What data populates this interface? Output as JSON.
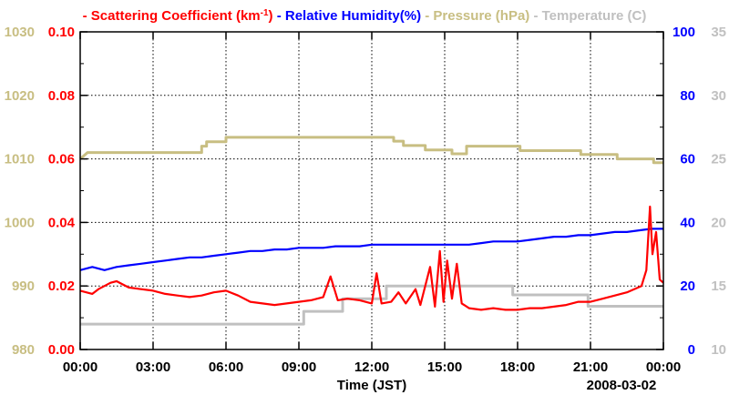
{
  "chart_data": {
    "type": "line",
    "title_segments": [
      {
        "name": "scattering",
        "text": "- Scattering Coefficient (km",
        "sup": "-1",
        "after": ")",
        "color": "#ff0000"
      },
      {
        "name": "humidity",
        "text": "- Relative Humidity(%)",
        "color": "#0000ff"
      },
      {
        "name": "pressure",
        "text": "- Pressure (hPa)",
        "color": "#c8be82"
      },
      {
        "name": "temperature",
        "text": "- Temperature (",
        "after": "C)",
        "color": "#c0c0c0"
      }
    ],
    "xlabel": "Time (JST)",
    "date_label": "2008-03-02",
    "x_ticks": [
      {
        "v": 0,
        "label": "00:00"
      },
      {
        "v": 3,
        "label": "03:00"
      },
      {
        "v": 6,
        "label": "06:00"
      },
      {
        "v": 9,
        "label": "09:00"
      },
      {
        "v": 12,
        "label": "12:00"
      },
      {
        "v": 15,
        "label": "15:00"
      },
      {
        "v": 18,
        "label": "18:00"
      },
      {
        "v": 21,
        "label": "21:00"
      },
      {
        "v": 24,
        "label": "00:00"
      }
    ],
    "xlim": [
      0,
      24
    ],
    "axes": {
      "pressure": {
        "color": "#c8be82",
        "ylim": [
          980,
          1030
        ],
        "ticks": [
          "980",
          "990",
          "1000",
          "1010",
          "1020",
          "1030"
        ]
      },
      "scattering": {
        "color": "#ff0000",
        "ylim": [
          0,
          0.1
        ],
        "ticks": [
          "0.00",
          "0.02",
          "0.04",
          "0.06",
          "0.08",
          "0.10"
        ]
      },
      "humidity": {
        "color": "#0000ff",
        "ylim": [
          0,
          100
        ],
        "ticks": [
          "0",
          "20",
          "40",
          "60",
          "80",
          "100"
        ]
      },
      "temperature": {
        "color": "#c0c0c0",
        "ylim": [
          10,
          35
        ],
        "ticks": [
          "10",
          "15",
          "20",
          "25",
          "30",
          "35"
        ]
      }
    },
    "grid": true,
    "series": [
      {
        "name": "Pressure (hPa)",
        "color": "#c8be82",
        "axis": "pressure",
        "step": true,
        "points": [
          [
            0,
            1010
          ],
          [
            0.3,
            1011
          ],
          [
            5.0,
            1011
          ],
          [
            5.0,
            1012
          ],
          [
            5.2,
            1012
          ],
          [
            5.2,
            1012.7
          ],
          [
            6.0,
            1012.7
          ],
          [
            6.0,
            1013.4
          ],
          [
            12.9,
            1013.4
          ],
          [
            12.9,
            1012.8
          ],
          [
            13.3,
            1012.8
          ],
          [
            13.3,
            1012.1
          ],
          [
            14.2,
            1012.1
          ],
          [
            14.2,
            1011.4
          ],
          [
            15.3,
            1011.4
          ],
          [
            15.3,
            1010.8
          ],
          [
            15.9,
            1010.8
          ],
          [
            15.9,
            1012
          ],
          [
            18.1,
            1012
          ],
          [
            18.1,
            1011.3
          ],
          [
            20.6,
            1011.3
          ],
          [
            20.6,
            1010.7
          ],
          [
            22.1,
            1010.7
          ],
          [
            22.1,
            1010
          ],
          [
            23.6,
            1010
          ],
          [
            23.6,
            1009.4
          ],
          [
            24,
            1009.4
          ]
        ]
      },
      {
        "name": "Temperature (C)",
        "color": "#c0c0c0",
        "axis": "temperature",
        "step": true,
        "points": [
          [
            0,
            12
          ],
          [
            9.2,
            12
          ],
          [
            9.2,
            13
          ],
          [
            10.8,
            13
          ],
          [
            10.8,
            14
          ],
          [
            12.6,
            14
          ],
          [
            12.6,
            15
          ],
          [
            17.8,
            15
          ],
          [
            17.8,
            14.3
          ],
          [
            20.9,
            14.3
          ],
          [
            20.9,
            13.4
          ],
          [
            24,
            13.4
          ]
        ]
      },
      {
        "name": "Relative Humidity(%)",
        "color": "#0000ff",
        "axis": "humidity",
        "points": [
          [
            0,
            25
          ],
          [
            0.5,
            26
          ],
          [
            1,
            25
          ],
          [
            1.5,
            26
          ],
          [
            2,
            26.5
          ],
          [
            2.5,
            27
          ],
          [
            3,
            27.5
          ],
          [
            3.5,
            28
          ],
          [
            4,
            28.5
          ],
          [
            4.5,
            29
          ],
          [
            5,
            29
          ],
          [
            5.5,
            29.5
          ],
          [
            6,
            30
          ],
          [
            6.5,
            30.5
          ],
          [
            7,
            31
          ],
          [
            7.5,
            31
          ],
          [
            8,
            31.5
          ],
          [
            8.5,
            31.5
          ],
          [
            9,
            32
          ],
          [
            9.5,
            32
          ],
          [
            10,
            32
          ],
          [
            10.5,
            32.5
          ],
          [
            11,
            32.5
          ],
          [
            11.5,
            32.5
          ],
          [
            12,
            33
          ],
          [
            12.5,
            33
          ],
          [
            13,
            33
          ],
          [
            13.5,
            33
          ],
          [
            14,
            33
          ],
          [
            14.5,
            33
          ],
          [
            15,
            33
          ],
          [
            15.5,
            33
          ],
          [
            16,
            33
          ],
          [
            16.5,
            33.5
          ],
          [
            17,
            34
          ],
          [
            17.5,
            34
          ],
          [
            18,
            34
          ],
          [
            18.5,
            34.5
          ],
          [
            19,
            35
          ],
          [
            19.5,
            35.5
          ],
          [
            20,
            35.5
          ],
          [
            20.5,
            36
          ],
          [
            21,
            36
          ],
          [
            21.5,
            36.5
          ],
          [
            22,
            37
          ],
          [
            22.5,
            37
          ],
          [
            23,
            37.5
          ],
          [
            23.5,
            38
          ],
          [
            24,
            38
          ]
        ]
      },
      {
        "name": "Scattering Coefficient (km-1)",
        "color": "#ff0000",
        "axis": "scattering",
        "points": [
          [
            0,
            0.0185
          ],
          [
            0.25,
            0.018
          ],
          [
            0.5,
            0.0175
          ],
          [
            0.75,
            0.019
          ],
          [
            1,
            0.02
          ],
          [
            1.25,
            0.021
          ],
          [
            1.5,
            0.0215
          ],
          [
            1.75,
            0.0205
          ],
          [
            2,
            0.0195
          ],
          [
            2.5,
            0.019
          ],
          [
            3,
            0.0185
          ],
          [
            3.5,
            0.0175
          ],
          [
            4,
            0.017
          ],
          [
            4.5,
            0.0165
          ],
          [
            5,
            0.017
          ],
          [
            5.5,
            0.018
          ],
          [
            6,
            0.0185
          ],
          [
            6.5,
            0.017
          ],
          [
            7,
            0.015
          ],
          [
            7.5,
            0.0145
          ],
          [
            8,
            0.014
          ],
          [
            8.5,
            0.0145
          ],
          [
            9,
            0.015
          ],
          [
            9.5,
            0.0155
          ],
          [
            10,
            0.0165
          ],
          [
            10.3,
            0.023
          ],
          [
            10.6,
            0.0155
          ],
          [
            11,
            0.016
          ],
          [
            11.5,
            0.0155
          ],
          [
            12,
            0.0145
          ],
          [
            12.2,
            0.024
          ],
          [
            12.4,
            0.0145
          ],
          [
            12.8,
            0.015
          ],
          [
            13.1,
            0.018
          ],
          [
            13.4,
            0.0145
          ],
          [
            13.8,
            0.019
          ],
          [
            14,
            0.014
          ],
          [
            14.4,
            0.026
          ],
          [
            14.6,
            0.0135
          ],
          [
            14.8,
            0.031
          ],
          [
            14.95,
            0.015
          ],
          [
            15.1,
            0.028
          ],
          [
            15.3,
            0.016
          ],
          [
            15.5,
            0.027
          ],
          [
            15.7,
            0.0145
          ],
          [
            16,
            0.013
          ],
          [
            16.5,
            0.0125
          ],
          [
            17,
            0.013
          ],
          [
            17.5,
            0.0125
          ],
          [
            18,
            0.0125
          ],
          [
            18.5,
            0.013
          ],
          [
            19,
            0.013
          ],
          [
            19.5,
            0.0135
          ],
          [
            20,
            0.014
          ],
          [
            20.5,
            0.015
          ],
          [
            21,
            0.015
          ],
          [
            21.5,
            0.016
          ],
          [
            22,
            0.017
          ],
          [
            22.5,
            0.018
          ],
          [
            22.8,
            0.019
          ],
          [
            23.1,
            0.02
          ],
          [
            23.3,
            0.025
          ],
          [
            23.45,
            0.045
          ],
          [
            23.55,
            0.03
          ],
          [
            23.7,
            0.037
          ],
          [
            23.85,
            0.022
          ],
          [
            24,
            0.021
          ]
        ]
      }
    ]
  }
}
